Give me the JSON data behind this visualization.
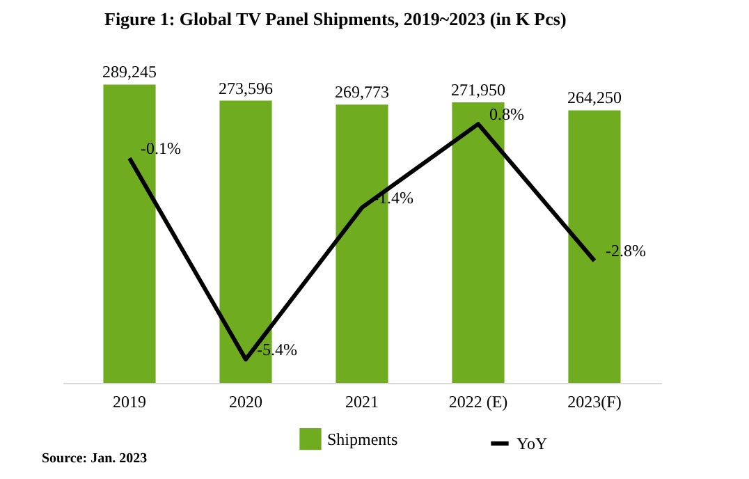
{
  "chart_data": {
    "type": "bar",
    "title": "Figure 1: Global TV Panel Shipments, 2019~2023 (in K Pcs)",
    "categories": [
      "2019",
      "2020",
      "2021",
      "2022 (E)",
      "2023(F)"
    ],
    "series": [
      {
        "name": "Shipments",
        "color": "#6fac1f",
        "values": [
          289245,
          273596,
          269773,
          271950,
          264250
        ],
        "value_labels": [
          "289,245",
          "273,596",
          "269,773",
          "271,950",
          "264,250"
        ]
      },
      {
        "name": "YoY",
        "type": "line",
        "axis": "y2",
        "color": "#000000",
        "values": [
          -0.1,
          -5.4,
          -1.4,
          0.8,
          -2.8
        ],
        "value_labels": [
          "-0.1%",
          "-5.4%",
          "-1.4%",
          "0.8%",
          "-2.8%"
        ]
      }
    ],
    "legend": "bottom",
    "annotations": [
      "Source: Jan. 2023"
    ]
  }
}
